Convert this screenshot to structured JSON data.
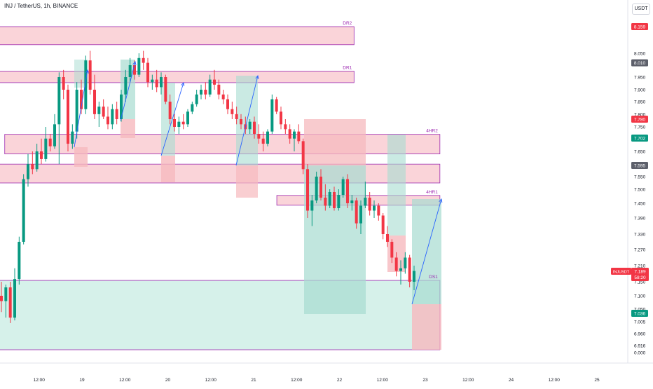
{
  "header": {
    "symbol_title": "INJ / TetherUS, 1h, BINANCE",
    "currency_button": "USDT"
  },
  "colors": {
    "bull": "#089981",
    "bear": "#f23645",
    "zone_fill": "#f8c6cc",
    "zone_border": "#9c27b0",
    "zone_label": "#9c27b0",
    "long_target": "#a6dcd0",
    "long_stop": "#f6b9be",
    "demand_fill": "#cfeee6",
    "trade_arrow": "#2962ff"
  },
  "price_scale": {
    "ticks": [
      "8.050",
      "7.950",
      "7.900",
      "7.850",
      "7.800",
      "7.750",
      "7.650",
      "7.550",
      "7.500",
      "7.450",
      "7.390",
      "7.330",
      "7.270",
      "7.210",
      "7.150",
      "7.100",
      "7.050",
      "7.005",
      "6.960",
      "6.916",
      "0.000"
    ],
    "badges": [
      {
        "text": "8.159",
        "color": "#f23645",
        "price": 8.159
      },
      {
        "text": "8.010",
        "color": "#5d606b",
        "price": 8.01
      },
      {
        "text": "7.780",
        "color": "#f23645",
        "price": 7.78
      },
      {
        "text": "7.702",
        "color": "#089981",
        "price": 7.702
      },
      {
        "text": "7.595",
        "color": "#5d606b",
        "price": 7.595
      },
      {
        "text": "7.036",
        "color": "#089981",
        "price": 7.036
      }
    ],
    "current": {
      "symbol": "INJUSDT",
      "price_label": "7.189",
      "countdown": "58:20",
      "price": 7.189
    }
  },
  "time_axis": {
    "labels": [
      {
        "text": "12:00",
        "day": 0.5
      },
      {
        "text": "19",
        "day": 1
      },
      {
        "text": "12:00",
        "day": 1.5
      },
      {
        "text": "20",
        "day": 2
      },
      {
        "text": "12:00",
        "day": 2.5
      },
      {
        "text": "21",
        "day": 3
      },
      {
        "text": "12:00",
        "day": 3.5
      },
      {
        "text": "22",
        "day": 4
      },
      {
        "text": "12:00",
        "day": 4.5
      },
      {
        "text": "23",
        "day": 5
      },
      {
        "text": "12:00",
        "day": 5.5
      },
      {
        "text": "24",
        "day": 6
      },
      {
        "text": "12:00",
        "day": 6.5
      },
      {
        "text": "25",
        "day": 7
      }
    ]
  },
  "zones": [
    {
      "label": "DR2",
      "top": 8.159,
      "bottom": 8.085,
      "start_day": -0.95,
      "end_day": 4.17
    },
    {
      "label": "DR1",
      "top": 7.975,
      "bottom": 7.928,
      "start_day": -0.42,
      "end_day": 4.17
    },
    {
      "label": "4HR2",
      "top": 7.718,
      "bottom": 7.64,
      "start_day": 0.1,
      "end_day": 5.17
    },
    {
      "label": "",
      "top": 7.6,
      "bottom": 7.525,
      "start_day": -0.95,
      "end_day": 5.17
    },
    {
      "label": "4HR1",
      "top": 7.478,
      "bottom": 7.442,
      "start_day": 3.27,
      "end_day": 5.17
    },
    {
      "label": "DS1",
      "top": 7.155,
      "bottom": 6.9,
      "start_day": -0.95,
      "end_day": 5.17
    }
  ],
  "chart_data": {
    "type": "candlestick",
    "title": "INJ / TetherUS, 1h, BINANCE",
    "x_unit": "days since 18 00:00 (time axis labels 19..25)",
    "y_axis": "price (USDT)",
    "ylim": [
      6.88,
      8.22
    ],
    "current_price": 7.189,
    "candles": [
      [
        7.1,
        7.15,
        7.04,
        7.08
      ],
      [
        7.08,
        7.14,
        7.02,
        7.13
      ],
      [
        7.13,
        7.15,
        7.0,
        7.02
      ],
      [
        7.02,
        7.2,
        7.01,
        7.16
      ],
      [
        7.16,
        7.32,
        7.14,
        7.3
      ],
      [
        7.3,
        7.56,
        7.29,
        7.54
      ],
      [
        7.54,
        7.64,
        7.51,
        7.6
      ],
      [
        7.6,
        7.65,
        7.56,
        7.58
      ],
      [
        7.58,
        7.68,
        7.57,
        7.65
      ],
      [
        7.65,
        7.7,
        7.6,
        7.62
      ],
      [
        7.62,
        7.75,
        7.61,
        7.7
      ],
      [
        7.7,
        7.72,
        7.65,
        7.67
      ],
      [
        7.67,
        7.8,
        7.66,
        7.76
      ],
      [
        7.76,
        7.97,
        7.6,
        7.95
      ],
      [
        7.95,
        7.98,
        7.86,
        7.9
      ],
      [
        7.9,
        7.92,
        7.65,
        7.68
      ],
      [
        7.68,
        7.76,
        7.66,
        7.73
      ],
      [
        7.73,
        7.93,
        7.7,
        7.9
      ],
      [
        7.9,
        7.94,
        7.8,
        7.82
      ],
      [
        7.82,
        8.04,
        7.8,
        8.02
      ],
      [
        8.02,
        8.06,
        7.88,
        7.9
      ],
      [
        7.9,
        7.96,
        7.78,
        7.8
      ],
      [
        7.8,
        7.85,
        7.75,
        7.83
      ],
      [
        7.83,
        7.86,
        7.78,
        7.79
      ],
      [
        7.79,
        7.83,
        7.74,
        7.76
      ],
      [
        7.76,
        7.84,
        7.74,
        7.82
      ],
      [
        7.82,
        7.85,
        7.76,
        7.78
      ],
      [
        7.78,
        7.9,
        7.77,
        7.88
      ],
      [
        7.88,
        7.98,
        7.85,
        7.95
      ],
      [
        7.95,
        8.03,
        7.93,
        8.0
      ],
      [
        8.0,
        8.02,
        7.94,
        7.96
      ],
      [
        7.96,
        8.05,
        7.95,
        8.03
      ],
      [
        8.03,
        8.06,
        7.98,
        8.01
      ],
      [
        8.01,
        8.03,
        7.91,
        7.93
      ],
      [
        7.93,
        7.96,
        7.9,
        7.94
      ],
      [
        7.94,
        7.98,
        7.89,
        7.91
      ],
      [
        7.91,
        7.97,
        7.88,
        7.95
      ],
      [
        7.95,
        7.96,
        7.84,
        7.85
      ],
      [
        7.85,
        7.88,
        7.76,
        7.78
      ],
      [
        7.78,
        7.8,
        7.73,
        7.75
      ],
      [
        7.75,
        7.79,
        7.72,
        7.77
      ],
      [
        7.77,
        7.8,
        7.74,
        7.76
      ],
      [
        7.76,
        7.82,
        7.75,
        7.81
      ],
      [
        7.81,
        7.85,
        7.8,
        7.84
      ],
      [
        7.84,
        7.9,
        7.83,
        7.88
      ],
      [
        7.88,
        7.92,
        7.86,
        7.9
      ],
      [
        7.9,
        7.93,
        7.86,
        7.88
      ],
      [
        7.88,
        7.96,
        7.87,
        7.94
      ],
      [
        7.94,
        7.98,
        7.9,
        7.92
      ],
      [
        7.92,
        7.94,
        7.86,
        7.88
      ],
      [
        7.88,
        7.9,
        7.84,
        7.86
      ],
      [
        7.86,
        7.88,
        7.8,
        7.82
      ],
      [
        7.82,
        7.85,
        7.78,
        7.8
      ],
      [
        7.8,
        7.83,
        7.76,
        7.78
      ],
      [
        7.78,
        7.8,
        7.74,
        7.76
      ],
      [
        7.76,
        7.79,
        7.72,
        7.74
      ],
      [
        7.74,
        7.78,
        7.72,
        7.77
      ],
      [
        7.77,
        7.79,
        7.7,
        7.72
      ],
      [
        7.72,
        7.76,
        7.68,
        7.7
      ],
      [
        7.7,
        7.73,
        7.65,
        7.68
      ],
      [
        7.68,
        7.74,
        7.67,
        7.73
      ],
      [
        7.73,
        7.88,
        7.72,
        7.86
      ],
      [
        7.86,
        7.87,
        7.8,
        7.81
      ],
      [
        7.81,
        7.83,
        7.74,
        7.76
      ],
      [
        7.76,
        7.78,
        7.72,
        7.74
      ],
      [
        7.74,
        7.76,
        7.68,
        7.7
      ],
      [
        7.7,
        7.74,
        7.65,
        7.73
      ],
      [
        7.73,
        7.76,
        7.68,
        7.69
      ],
      [
        7.69,
        7.7,
        7.56,
        7.58
      ],
      [
        7.58,
        7.6,
        7.39,
        7.42
      ],
      [
        7.42,
        7.48,
        7.36,
        7.46
      ],
      [
        7.46,
        7.57,
        7.45,
        7.55
      ],
      [
        7.55,
        7.58,
        7.46,
        7.47
      ],
      [
        7.47,
        7.52,
        7.42,
        7.44
      ],
      [
        7.44,
        7.5,
        7.43,
        7.49
      ],
      [
        7.49,
        7.51,
        7.42,
        7.43
      ],
      [
        7.43,
        7.5,
        7.42,
        7.48
      ],
      [
        7.48,
        7.55,
        7.47,
        7.54
      ],
      [
        7.54,
        7.56,
        7.43,
        7.45
      ],
      [
        7.45,
        7.48,
        7.42,
        7.46
      ],
      [
        7.46,
        7.47,
        7.35,
        7.37
      ],
      [
        7.37,
        7.46,
        7.33,
        7.44
      ],
      [
        7.44,
        7.53,
        7.43,
        7.47
      ],
      [
        7.47,
        7.49,
        7.4,
        7.42
      ],
      [
        7.42,
        7.46,
        7.39,
        7.44
      ],
      [
        7.44,
        7.45,
        7.38,
        7.4
      ],
      [
        7.4,
        7.41,
        7.31,
        7.33
      ],
      [
        7.33,
        7.36,
        7.28,
        7.3
      ],
      [
        7.3,
        7.31,
        7.22,
        7.24
      ],
      [
        7.24,
        7.26,
        7.17,
        7.19
      ],
      [
        7.19,
        7.23,
        7.14,
        7.2
      ],
      [
        7.2,
        7.26,
        7.18,
        7.24
      ],
      [
        7.24,
        7.25,
        7.13,
        7.15
      ],
      [
        7.15,
        7.21,
        7.12,
        7.19
      ]
    ]
  }
}
